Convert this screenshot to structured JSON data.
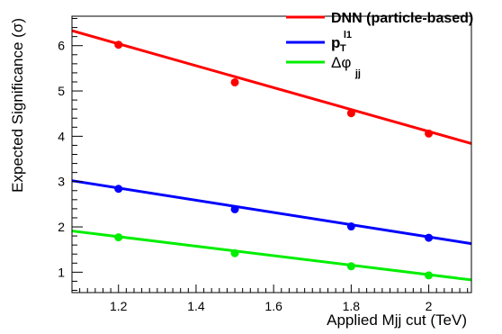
{
  "chart_data": {
    "type": "line",
    "xlabel": "Applied Mjj cut (TeV)",
    "ylabel": "Expected Significance (σ)",
    "xlim": [
      1.08,
      2.11
    ],
    "ylim": [
      0.55,
      6.65
    ],
    "x_ticks": [
      1.2,
      1.4,
      1.6,
      1.8,
      2
    ],
    "x_tick_labels": [
      "1.2",
      "1.4",
      "1.6",
      "1.8",
      "2"
    ],
    "y_ticks": [
      1,
      2,
      3,
      4,
      5,
      6
    ],
    "y_tick_labels": [
      "1",
      "2",
      "3",
      "4",
      "5",
      "6"
    ],
    "grid": false,
    "legend_position": "top-right",
    "series": [
      {
        "name": "DNN (particle-based)",
        "color": "#ff0000",
        "points_x": [
          1.2,
          1.5,
          1.8,
          2.0
        ],
        "points_y": [
          6.02,
          5.19,
          4.51,
          4.06
        ],
        "fit_line": [
          [
            1.08,
            6.33
          ],
          [
            2.11,
            3.84
          ]
        ]
      },
      {
        "name": "pT l1",
        "color": "#0000ff",
        "points_x": [
          1.2,
          1.5,
          1.8,
          2.0
        ],
        "points_y": [
          2.84,
          2.39,
          2.01,
          1.76
        ],
        "fit_line": [
          [
            1.08,
            3.02
          ],
          [
            2.11,
            1.63
          ]
        ]
      },
      {
        "name": "Δφ jj",
        "color": "#00ee00",
        "points_x": [
          1.2,
          1.5,
          1.8,
          2.0
        ],
        "points_y": [
          1.77,
          1.42,
          1.13,
          0.93
        ],
        "fit_line": [
          [
            1.08,
            1.91
          ],
          [
            2.11,
            0.83
          ]
        ]
      }
    ]
  },
  "legend": {
    "items": [
      {
        "label": "DNN (particle-based)",
        "color": "#ff0000"
      },
      {
        "symbol": "p",
        "sub": "T",
        "sup": "l1",
        "color": "#0000ff"
      },
      {
        "symbol": "Δφ",
        "sub": "jj",
        "color": "#00ee00"
      }
    ]
  }
}
